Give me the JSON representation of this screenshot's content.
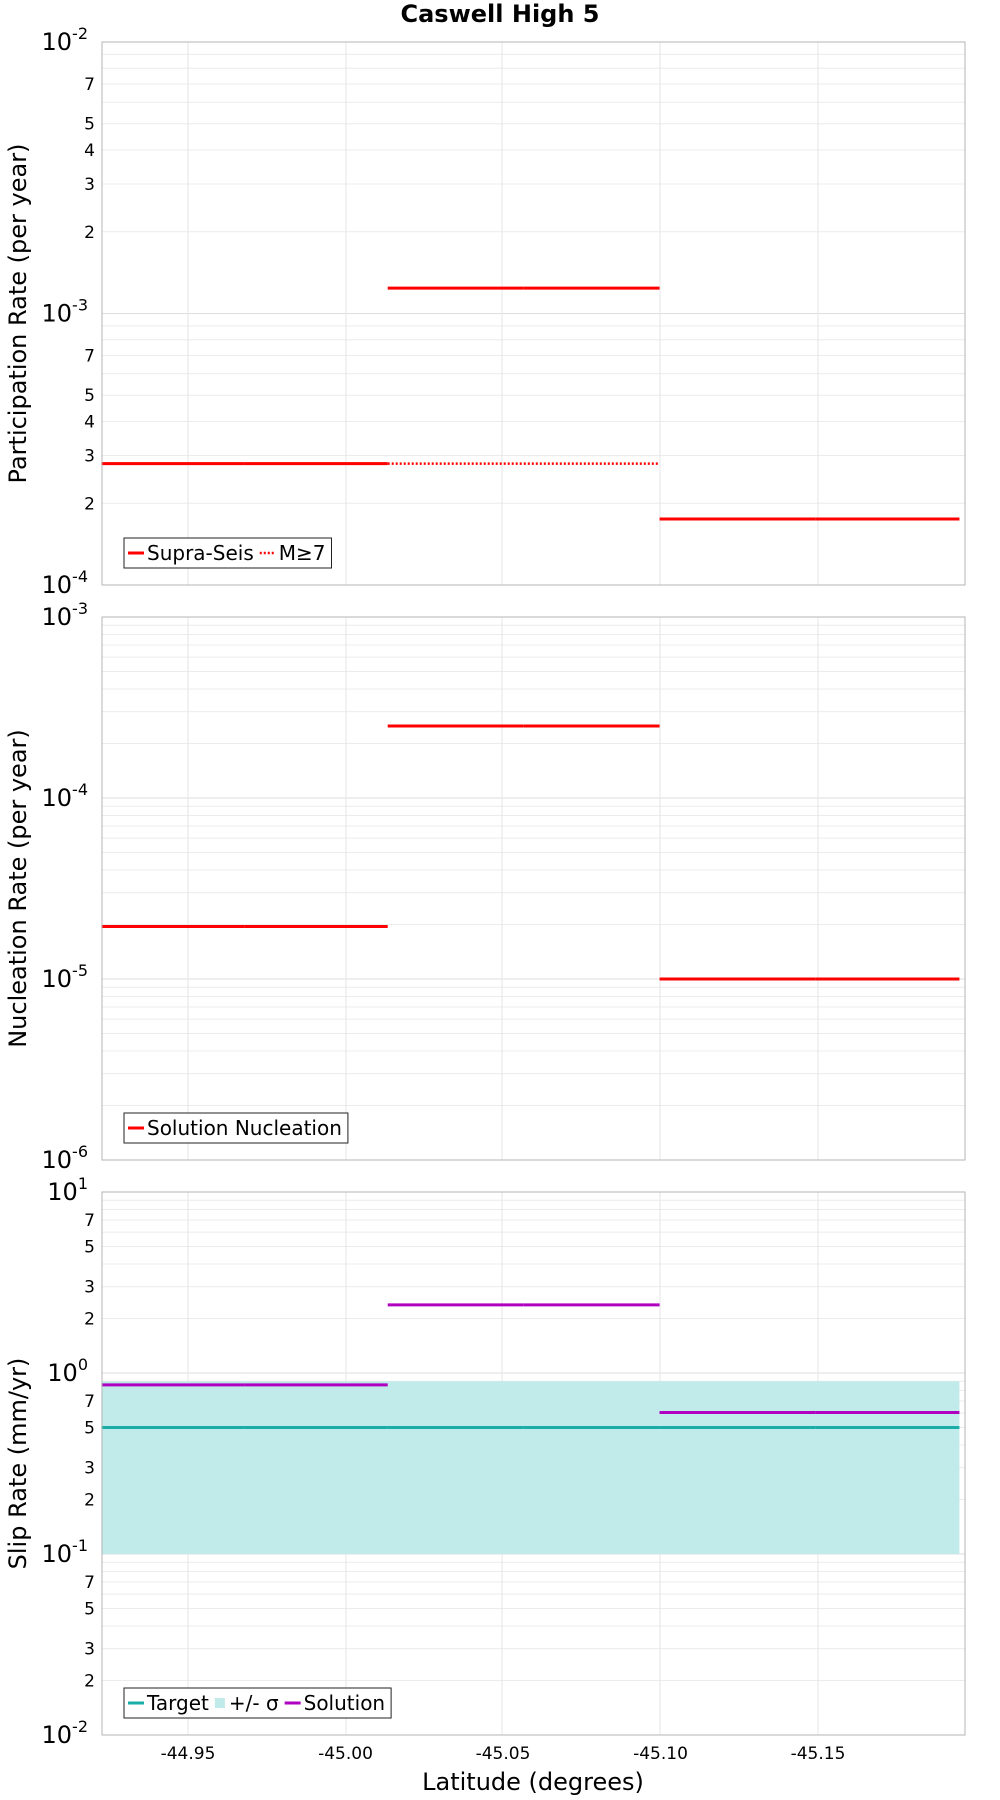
{
  "chart_data": {
    "title": "Caswell High 5",
    "xlabel": "Latitude (degrees)",
    "x_tick_labels": [
      "-44.95",
      "-45.00",
      "-45.05",
      "-45.10",
      "-45.15"
    ],
    "panels": [
      {
        "type": "line",
        "ylabel": "Participation Rate (per year)",
        "yscale": "log",
        "ylim": [
          0.0001,
          0.01
        ],
        "decade_labels": [
          {
            "base": "10",
            "exp": "-2"
          },
          {
            "base": "10",
            "exp": "-3"
          },
          {
            "base": "10",
            "exp": "-4"
          }
        ],
        "minor_tick_labels": [
          "7",
          "5",
          "4",
          "3",
          "2",
          "7",
          "5",
          "4",
          "3",
          "2"
        ],
        "legend": [
          {
            "label": "Supra-Seis",
            "style": "solid",
            "color": "#ff0000"
          },
          {
            "label": "M≥7",
            "style": "dotted",
            "color": "#ff0000"
          }
        ],
        "series": [
          {
            "name": "Supra-Seis",
            "style": "solid",
            "color": "#ff0000",
            "segments": [
              {
                "x": [
                  -44.9225,
                  -44.9679
                ],
                "y": 0.00028
              },
              {
                "x": [
                  -44.9679,
                  -45.0134
                ],
                "y": 0.00028
              },
              {
                "x": [
                  -45.0134,
                  -45.0566
                ],
                "y": 0.00124
              },
              {
                "x": [
                  -45.0566,
                  -45.0997
                ],
                "y": 0.00124
              },
              {
                "x": [
                  -45.0997,
                  -45.1493
                ],
                "y": 0.000175
              },
              {
                "x": [
                  -45.1493,
                  -45.1949
                ],
                "y": 0.000175
              }
            ]
          },
          {
            "name": "M≥7",
            "style": "dotted",
            "color": "#ff0000",
            "segments": [
              {
                "x": [
                  -44.9225,
                  -44.9679
                ],
                "y": 0.00028
              },
              {
                "x": [
                  -44.9679,
                  -45.0134
                ],
                "y": 0.00028
              },
              {
                "x": [
                  -45.0134,
                  -45.0566
                ],
                "y": 0.00028
              },
              {
                "x": [
                  -45.0566,
                  -45.0997
                ],
                "y": 0.00028
              }
            ]
          }
        ]
      },
      {
        "type": "line",
        "ylabel": "Nucleation Rate (per year)",
        "yscale": "log",
        "ylim": [
          1e-06,
          0.001
        ],
        "decade_labels": [
          {
            "base": "10",
            "exp": "-3"
          },
          {
            "base": "10",
            "exp": "-4"
          },
          {
            "base": "10",
            "exp": "-5"
          },
          {
            "base": "10",
            "exp": "-6"
          }
        ],
        "minor_tick_labels": [],
        "legend": [
          {
            "label": "Solution Nucleation",
            "style": "solid",
            "color": "#ff0000"
          }
        ],
        "series": [
          {
            "name": "Solution Nucleation",
            "style": "solid",
            "color": "#ff0000",
            "segments": [
              {
                "x": [
                  -44.9225,
                  -44.9679
                ],
                "y": 1.95e-05
              },
              {
                "x": [
                  -44.9679,
                  -45.0134
                ],
                "y": 1.95e-05
              },
              {
                "x": [
                  -45.0134,
                  -45.0566
                ],
                "y": 0.00025
              },
              {
                "x": [
                  -45.0566,
                  -45.0997
                ],
                "y": 0.00025
              },
              {
                "x": [
                  -45.0997,
                  -45.1493
                ],
                "y": 1e-05
              },
              {
                "x": [
                  -45.1493,
                  -45.1949
                ],
                "y": 1e-05
              }
            ]
          }
        ]
      },
      {
        "type": "line",
        "ylabel": "Slip Rate (mm/yr)",
        "yscale": "log",
        "ylim": [
          0.01,
          10
        ],
        "decade_labels": [
          {
            "base": "10",
            "exp": "1"
          },
          {
            "base": "10",
            "exp": "0"
          },
          {
            "base": "10",
            "exp": "-1"
          },
          {
            "base": "10",
            "exp": "-2"
          }
        ],
        "minor_tick_labels": [
          "7",
          "5",
          "3",
          "2",
          "7",
          "5",
          "3",
          "2",
          "7",
          "5",
          "3",
          "2"
        ],
        "legend": [
          {
            "label": "Target",
            "style": "solid",
            "color": "#1aada8"
          },
          {
            "label": "+/- σ",
            "style": "band",
            "color": "#c1ebea"
          },
          {
            "label": "Solution",
            "style": "solid",
            "color": "#b000c0"
          }
        ],
        "band": {
          "name": "+/- σ",
          "x": [
            -44.9225,
            -45.1949
          ],
          "y_low": 0.1,
          "y_high": 0.9,
          "color": "#c1ebea"
        },
        "series": [
          {
            "name": "Target",
            "style": "solid",
            "color": "#1aada8",
            "segments": [
              {
                "x": [
                  -44.9225,
                  -44.9679
                ],
                "y": 0.5
              },
              {
                "x": [
                  -44.9679,
                  -45.0134
                ],
                "y": 0.5
              },
              {
                "x": [
                  -45.0134,
                  -45.0566
                ],
                "y": 0.5
              },
              {
                "x": [
                  -45.0566,
                  -45.0997
                ],
                "y": 0.5
              },
              {
                "x": [
                  -45.0997,
                  -45.1493
                ],
                "y": 0.5
              },
              {
                "x": [
                  -45.1493,
                  -45.1949
                ],
                "y": 0.5
              }
            ]
          },
          {
            "name": "Solution",
            "style": "solid",
            "color": "#b000c0",
            "segments": [
              {
                "x": [
                  -44.9225,
                  -44.9679
                ],
                "y": 0.86
              },
              {
                "x": [
                  -44.9679,
                  -45.0134
                ],
                "y": 0.86
              },
              {
                "x": [
                  -45.0134,
                  -45.0566
                ],
                "y": 2.38
              },
              {
                "x": [
                  -45.0566,
                  -45.0997
                ],
                "y": 2.38
              },
              {
                "x": [
                  -45.0997,
                  -45.1493
                ],
                "y": 0.605
              },
              {
                "x": [
                  -45.1493,
                  -45.1949
                ],
                "y": 0.605
              }
            ]
          }
        ]
      }
    ]
  }
}
